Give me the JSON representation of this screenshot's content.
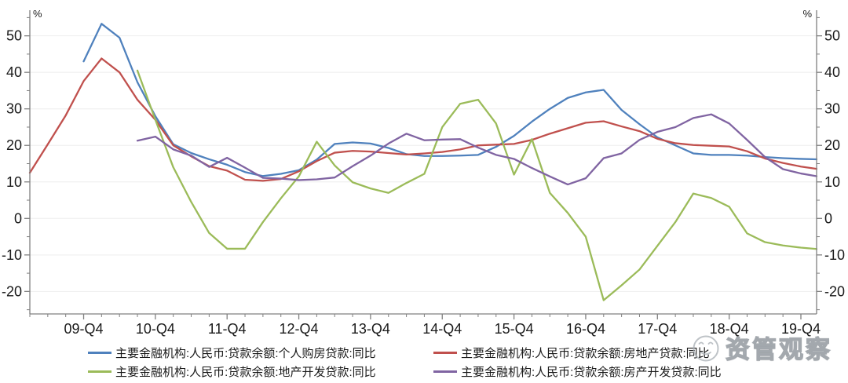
{
  "axes": {
    "y_unit_left": "%",
    "y_unit_right": "%",
    "y_major_ticks": [
      50,
      40,
      30,
      20,
      10,
      0,
      -10,
      -20
    ],
    "x_major_tick_labels": [
      "09-Q4",
      "10-Q4",
      "11-Q4",
      "12-Q4",
      "13-Q4",
      "14-Q4",
      "15-Q4",
      "16-Q4",
      "17-Q4",
      "18-Q4",
      "19-Q4"
    ]
  },
  "watermark": {
    "text": "资管观察",
    "logo": "smiley-face-circle"
  },
  "chart_data": {
    "type": "line",
    "title": "",
    "y_unit": "%",
    "ylim": [
      -26,
      57
    ],
    "grid": "horizontal",
    "legend_position": "bottom",
    "x": [
      "09-Q1",
      "09-Q2",
      "09-Q3",
      "09-Q4",
      "10-Q1",
      "10-Q2",
      "10-Q3",
      "10-Q4",
      "11-Q1",
      "11-Q2",
      "11-Q3",
      "11-Q4",
      "12-Q1",
      "12-Q2",
      "12-Q3",
      "12-Q4",
      "13-Q1",
      "13-Q2",
      "13-Q3",
      "13-Q4",
      "14-Q1",
      "14-Q2",
      "14-Q3",
      "14-Q4",
      "15-Q1",
      "15-Q2",
      "15-Q3",
      "15-Q4",
      "16-Q1",
      "16-Q2",
      "16-Q3",
      "16-Q4",
      "17-Q1",
      "17-Q2",
      "17-Q3",
      "17-Q4",
      "18-Q1",
      "18-Q2",
      "18-Q3",
      "18-Q4",
      "19-Q1",
      "19-Q2",
      "19-Q3",
      "19-Q4"
    ],
    "series": [
      {
        "name": "主要金融机构:人民币:贷款余额:个人购房贷款:同比",
        "color": "#4F81BD",
        "values": [
          null,
          null,
          null,
          43.0,
          53.3,
          49.5,
          37.3,
          28.0,
          20.3,
          17.9,
          16.2,
          14.7,
          12.7,
          11.6,
          12.2,
          13.2,
          16.1,
          20.4,
          20.8,
          20.5,
          19.3,
          17.6,
          17.1,
          17.1,
          17.2,
          17.4,
          19.6,
          22.6,
          26.5,
          30.0,
          33.0,
          34.5,
          35.2,
          29.7,
          25.8,
          22.2,
          20.0,
          17.8,
          17.4,
          17.4,
          17.2,
          16.8,
          16.5,
          16.3
        ]
      },
      {
        "name": "主要金融机构:人民币:贷款余额:房地产贷款:同比",
        "color": "#C0504D",
        "values": [
          12.5,
          20.3,
          28.2,
          37.6,
          43.8,
          40.0,
          32.5,
          27.0,
          20.0,
          17.0,
          14.3,
          13.1,
          10.6,
          10.3,
          10.8,
          12.9,
          15.7,
          18.0,
          18.5,
          18.3,
          17.9,
          17.5,
          17.8,
          18.2,
          18.9,
          20.0,
          20.2,
          20.4,
          21.5,
          23.2,
          24.7,
          26.2,
          26.6,
          25.2,
          23.9,
          21.8,
          20.6,
          20.1,
          19.9,
          19.7,
          18.4,
          16.4,
          15.2,
          14.2
        ]
      },
      {
        "name": "主要金融机构:人民币:贷款余额:地产开发贷款:同比",
        "color": "#9BBB59",
        "values": [
          null,
          null,
          null,
          null,
          null,
          null,
          40.5,
          27.0,
          14.0,
          4.5,
          -4.0,
          -8.3,
          -8.3,
          -1.0,
          5.5,
          11.5,
          21.0,
          14.5,
          9.9,
          8.2,
          7.0,
          9.7,
          12.2,
          25.0,
          31.4,
          32.5,
          26.0,
          12.0,
          21.7,
          7.0,
          1.5,
          -5.0,
          -22.4,
          -18.3,
          -14.0,
          -7.5,
          -1.0,
          6.8,
          5.6,
          3.2,
          -4.1,
          -6.5,
          -7.4,
          -8.0
        ]
      },
      {
        "name": "主要金融机构:人民币:贷款余额:房产开发贷款:同比",
        "color": "#8064A2",
        "values": [
          null,
          null,
          null,
          null,
          null,
          null,
          21.3,
          22.4,
          18.9,
          17.2,
          14.1,
          16.6,
          13.9,
          11.1,
          10.9,
          10.5,
          10.7,
          11.2,
          14.3,
          17.2,
          20.5,
          23.2,
          21.4,
          21.6,
          21.7,
          19.4,
          17.4,
          16.3,
          13.8,
          11.5,
          9.3,
          11.0,
          16.5,
          17.8,
          21.5,
          23.7,
          25.0,
          27.5,
          28.5,
          26.0,
          21.5,
          16.8,
          13.5,
          12.3
        ]
      }
    ]
  }
}
